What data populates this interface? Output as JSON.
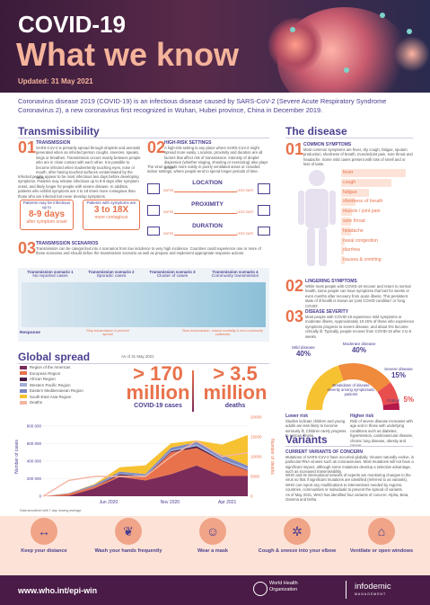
{
  "header": {
    "title_line1": "COVID-19",
    "title_line2": "What we know",
    "updated": "Updated: 31 May 2021"
  },
  "intro": "Coronavirus disease 2019 (COVID-19) is an infectious disease caused by SARS-CoV-2 (Severe Acute Respiratory Syndrome Coronavirus 2), a new coronavirus first recognized in Wuhan, Hubei province, China in December 2019.",
  "transmissibility": {
    "title": "Transmissibility",
    "item1": {
      "num": "01",
      "head": "TRANSMISSION",
      "text": "SARS-CoV-2 is primarily spread through droplets and aerosols generated when an infected person coughs, sneezes, speaks, sings or breathes. Transmission occurs mainly between people who are in close contact with each other. It is possible to become infected when inadvertently touching eyes, nose or mouth, after having touched surfaces contaminated by the virus.",
      "text2": "Infected people appear to be most infectious two days before developing symptoms. Patients may release infectious up to 8-9 days after symptom onset, and likely longer for people with severe disease. In addition, patients who exhibit symptoms are 3 to 18 times more contagious than those who are infected but never develop symptoms."
    },
    "box1": {
      "label": "Patients may be infectious up to",
      "big": "8-9 days",
      "small": "after symptom onset"
    },
    "box2": {
      "label": "Patients with symptoms are",
      "big": "3 to 18X",
      "small": "more contagious"
    },
    "item2": {
      "num": "02",
      "head": "HIGH-RISK SETTINGS",
      "text": "A high-risk setting is any place where SARS-CoV-2 might spread more easily. Location, proximity and duration are all factors that affect risk of transmission. Intensity of droplet dispersion (whether singing, shouting or exercising) also plays a role.",
      "text2": "The virus spreads more easily in poorly ventilated areas or crowded indoor settings, where people tend to spend longer periods of time."
    },
    "risk": [
      {
        "label": "LOCATION",
        "safer": "SAFER",
        "less": "LESS SAFE"
      },
      {
        "label": "PROXIMITY",
        "safer": "SAFER",
        "less": "LESS SAFE"
      },
      {
        "label": "DURATION",
        "safer": "SAFER",
        "less": "LESS SAFE"
      }
    ],
    "item3": {
      "num": "03",
      "head": "TRANSMISSION SCENARIOS",
      "text": "Transmission can be categorized into 4 scenarios from low incidence to very high incidence. Countries could experience one or more of these scenarios and should define the transmission scenario as well as prepare and implement appropriate response actions."
    },
    "scenarios": [
      {
        "title": "Transmission scenario 1",
        "sub": "No reported cases"
      },
      {
        "title": "Transmission scenario 2",
        "sub": "Sporadic cases"
      },
      {
        "title": "Transmission scenario 3",
        "sub": "Cluster of cases"
      },
      {
        "title": "Transmission scenario 4",
        "sub": "Community transmission"
      }
    ],
    "response": {
      "label": "Response",
      "left": "Stop transmission & prevent spread",
      "right": "Slow transmission, reduce mortality & end community outbreaks"
    }
  },
  "disease": {
    "title": "The disease",
    "item1": {
      "num": "01",
      "head": "COMMON SYMPTOMS",
      "text": "Most common symptoms are fever, dry cough, fatigue, sputum production, shortness of breath, muscle/joint pain, sore throat and headache. Some mild cases present with loss of smell and or loss of taste."
    },
    "symptoms": [
      "fever",
      "cough",
      "fatigue",
      "shortness of breath",
      "muscle / joint pain",
      "sore throat",
      "headache",
      "nasal congestion",
      "diarrhea",
      "nausea & vomiting"
    ],
    "symptom_fill": [
      0.88,
      0.68,
      0.38,
      0.19,
      0.15,
      0.14,
      0.14,
      0.05,
      0.04,
      0.05
    ],
    "item2": {
      "num": "02",
      "head": "LINGERING SYMPTOMS",
      "text": "While most people with COVID-19 recover and return to normal health, some people can have symptoms that last for weeks or even months after recovery from acute illness. This persistent state of ill health is known as 'post COVID condition' or 'long COVID'."
    },
    "item3": {
      "num": "03",
      "head": "DISEASE SEVERITY",
      "text": "Most people with COVID-19 experience mild symptoms or moderate illness. Approximately 10-15% of those who experience symptoms progress to severe disease, and about 5% become critically ill. Typically, people recover from COVID-19 after 2 to 6 weeks."
    },
    "severity": [
      {
        "label": "Mild disease",
        "pct": "40%",
        "color": "#f7c232",
        "value": 40
      },
      {
        "label": "Moderate disease",
        "pct": "40%",
        "color": "#f08a3c",
        "value": 40
      },
      {
        "label": "Severe disease",
        "pct": "15%",
        "color": "#e84e4e",
        "value": 15
      },
      {
        "label": "Critical",
        "pct": "5%",
        "color": "#b5184a",
        "value": 5
      }
    ],
    "severity_center": "Breakdown of disease severity among symptomatic patients",
    "lower_risk": {
      "head": "Lower risk",
      "text": "Studies indicate children and young adults are less likely to become seriously ill. Children rarely progress to serious illness."
    },
    "higher_risk": {
      "head": "Higher risk",
      "text": "Risk of severe disease increases with age and in those with underlying conditions such as diabetes, hypertension, cardiovascular disease, chronic lung disease, obesity and cancer."
    }
  },
  "global": {
    "title": "Global spread",
    "asof": "As of 31 May 2021",
    "cases_big": "> 170 million",
    "cases_label": "COVID-19 cases",
    "deaths_big": "> 3.5 million",
    "deaths_label": "deaths",
    "legend": [
      {
        "name": "Region of the Americas",
        "color": "#7a2b5a"
      },
      {
        "name": "European Region",
        "color": "#e8724c"
      },
      {
        "name": "African Region",
        "color": "#4a1b47"
      },
      {
        "name": "Western Pacific Region",
        "color": "#a3aed6"
      },
      {
        "name": "Eastern Mediterranean Region",
        "color": "#7c88c4"
      },
      {
        "name": "South-East Asia Region",
        "color": "#f7c232"
      },
      {
        "name": "Deaths",
        "color": "#f3b6a2"
      }
    ],
    "footnote": "Data smoothed with 7-day moving average"
  },
  "chart_data": {
    "type": "area",
    "x": [
      "Jan 2020",
      "Mar 2020",
      "May 2020",
      "Jul 2020",
      "Sep 2020",
      "Nov 2020",
      "Jan 2021",
      "Mar 2021",
      "May 2021"
    ],
    "xticks": [
      "Jun 2020",
      "Nov 2020",
      "Apr 2021"
    ],
    "ylabel": "Number of cases",
    "y2label": "Number of deaths",
    "yticks": [
      "0",
      "200 000",
      "400 000",
      "600 000",
      "800 000"
    ],
    "y2ticks": [
      "0",
      "5000",
      "10000",
      "15000",
      "20000"
    ],
    "ylim": [
      0,
      900000
    ],
    "y2lim": [
      0,
      20000
    ],
    "series": [
      {
        "name": "Region of the Americas",
        "values": [
          0,
          5000,
          90000,
          220000,
          180000,
          250000,
          350000,
          230000,
          230000
        ]
      },
      {
        "name": "European Region",
        "values": [
          0,
          25000,
          20000,
          18000,
          40000,
          250000,
          200000,
          170000,
          60000
        ]
      },
      {
        "name": "African Region",
        "values": [
          0,
          0,
          3000,
          14000,
          7000,
          10000,
          20000,
          8000,
          7000
        ]
      },
      {
        "name": "Western Pacific Region",
        "values": [
          0,
          1000,
          2000,
          8000,
          10000,
          12000,
          20000,
          14000,
          20000
        ]
      },
      {
        "name": "Eastern Mediterranean Region",
        "values": [
          0,
          3000,
          15000,
          20000,
          15000,
          30000,
          25000,
          45000,
          30000
        ]
      },
      {
        "name": "South-East Asia Region",
        "values": [
          0,
          100,
          8000,
          50000,
          100000,
          50000,
          20000,
          120000,
          350000
        ]
      },
      {
        "name": "Deaths",
        "values": [
          0,
          4000,
          5000,
          5000,
          5000,
          10000,
          14000,
          10000,
          11000
        ]
      }
    ]
  },
  "variants": {
    "title": "Variants",
    "head": "CURRENT VARIANTS OF CONCERN",
    "p1": "Mutations of SARS-CoV-2 have occurred globally. Viruses naturally evolve, in particular RNA viruses such as coronaviruses. Most mutations will not have a significant impact, although some mutations develop a selective advantage, such as increased transmissibility.",
    "p2": "WHO and its international network of experts are monitoring changes to the virus so that if significant mutations are identified (referred to as variants), WHO can report any modifications to interventions needed by regions, countries, communities or individuals to prevent the spread of variants.",
    "p3": "As of May 2021, WHO has identified four variants of concern: Alpha, Beta, Gamma and Delta."
  },
  "prevention": [
    {
      "label": "Keep your distance",
      "icon": "distance-icon"
    },
    {
      "label": "Wash your hands frequently",
      "icon": "handwash-icon"
    },
    {
      "label": "Wear a mask",
      "icon": "mask-icon"
    },
    {
      "label": "Cough & sneeze into your elbow",
      "icon": "elbow-icon"
    },
    {
      "label": "Ventilate or open windows",
      "icon": "window-icon"
    }
  ],
  "footer": {
    "url": "www.who.int/epi-win",
    "who1": "World Health",
    "who2": "Organization",
    "info1": "infodemic",
    "info2": "MANAGEMENT"
  }
}
